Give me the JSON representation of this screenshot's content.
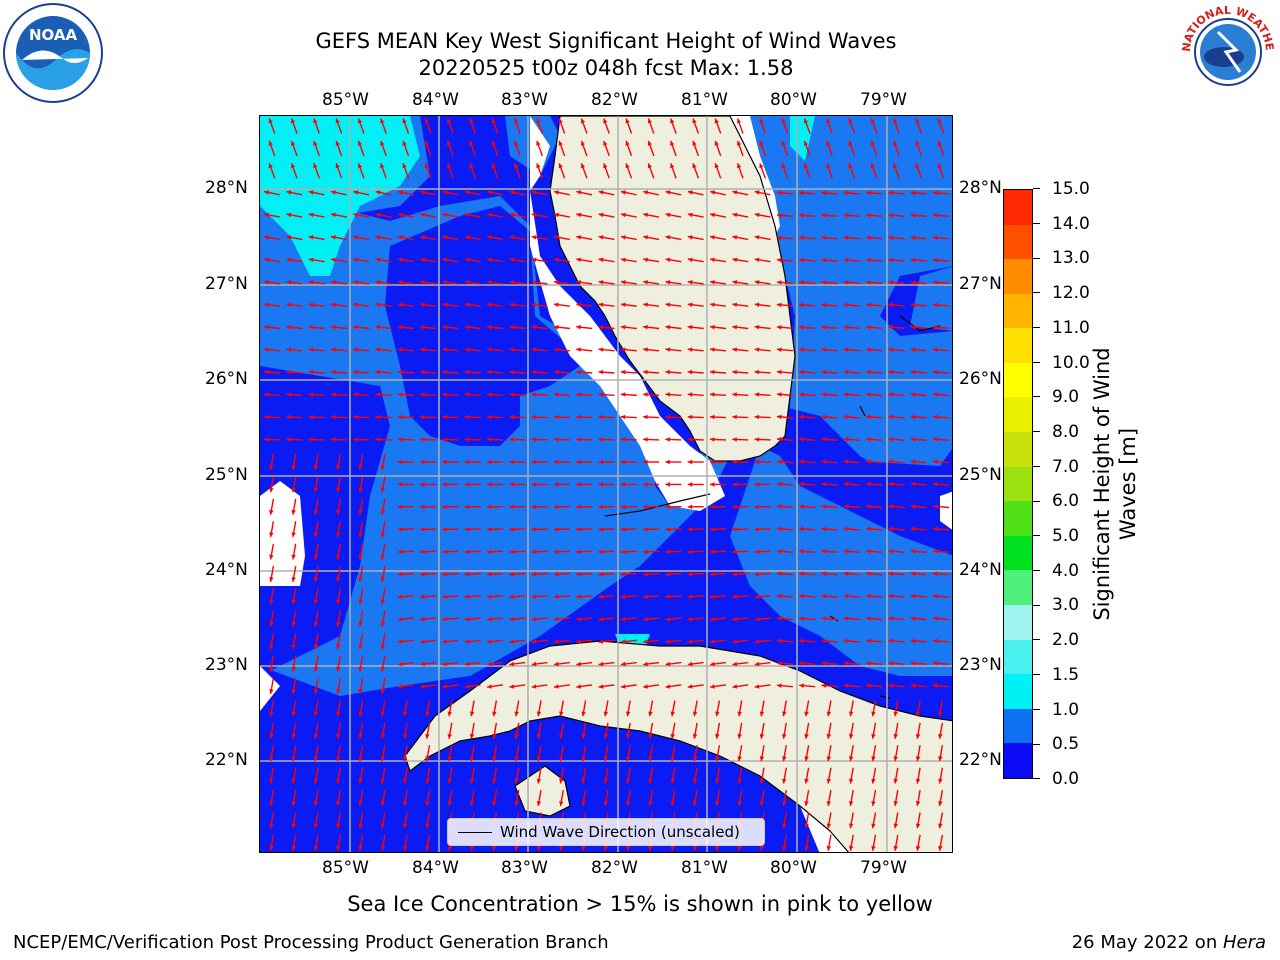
{
  "title": {
    "line1": "GEFS MEAN Key West Significant Height of Wind Waves",
    "line2": "20220525 t00z 048h fcst   Max: 1.58"
  },
  "logos": {
    "noaa": "NOAA",
    "nws": "NATIONAL WEATHER SERVICE"
  },
  "axes": {
    "lon_labels": [
      "85°W",
      "84°W",
      "83°W",
      "82°W",
      "81°W",
      "80°W",
      "79°W"
    ],
    "lat_labels": [
      "28°N",
      "27°N",
      "26°N",
      "25°N",
      "24°N",
      "23°N",
      "22°N"
    ]
  },
  "colorbar": {
    "label": "Significant Height of Wind Waves [m]",
    "label_line1": "Significant Height of Wind",
    "label_line2": "Waves [m]",
    "ticks": [
      "0.0",
      "0.5",
      "1.0",
      "1.5",
      "2.0",
      "3.0",
      "4.0",
      "5.0",
      "6.0",
      "7.0",
      "8.0",
      "9.0",
      "10.0",
      "11.0",
      "12.0",
      "13.0",
      "14.0",
      "15.0"
    ],
    "colors": [
      "#0a0af4",
      "#0d6ff2",
      "#00f0f5",
      "#48f0f0",
      "#a0f4f0",
      "#4cf07a",
      "#00e020",
      "#50e018",
      "#9ce010",
      "#c8e00c",
      "#e8f000",
      "#ffff00",
      "#ffe000",
      "#ffb400",
      "#ff8c00",
      "#ff5000",
      "#ff2800"
    ]
  },
  "legend": {
    "label": "Wind Wave Direction (unscaled)"
  },
  "note": "Sea Ice Concentration > 15% is shown in pink to yellow",
  "footer": {
    "left": "NCEP/EMC/Verification Post Processing Product Generation Branch",
    "right_date": "26 May 2022 on ",
    "right_machine": "Hera"
  },
  "map_colors": {
    "deep": "#0a1cf3",
    "mid": "#1a78f2",
    "light": "#00f0f5",
    "land": "#efefdf",
    "white": "#ffffff",
    "arrow": "#ff0000",
    "grid": "#b0b0b0"
  }
}
